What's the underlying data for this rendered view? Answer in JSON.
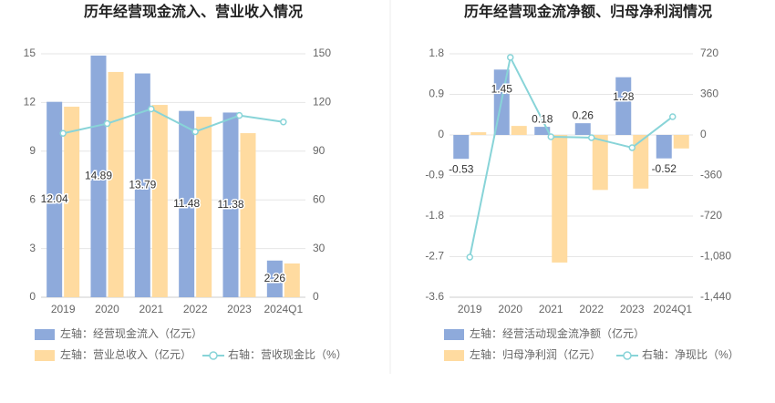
{
  "chart_data": [
    {
      "type": "combo",
      "title": "历年经营现金流入、营业收入情况",
      "categories": [
        "2019",
        "2020",
        "2021",
        "2022",
        "2023",
        "2024Q1"
      ],
      "ylim": [
        0,
        15
      ],
      "yticks": [
        0,
        3,
        6,
        9,
        12,
        15
      ],
      "y2lim": [
        0,
        150
      ],
      "y2ticks": [
        0,
        30,
        60,
        90,
        120,
        150
      ],
      "grid": true,
      "series": [
        {
          "name": "左轴：经营现金流入（亿元）",
          "kind": "bar",
          "color": "#8eaadb",
          "data_labels": true,
          "values": [
            12.04,
            14.89,
            13.79,
            11.48,
            11.38,
            2.26
          ]
        },
        {
          "name": "左轴：营业总收入（亿元）",
          "kind": "bar",
          "color": "#ffdba0",
          "values": [
            11.74,
            13.88,
            11.85,
            11.12,
            10.11,
            2.08
          ]
        },
        {
          "name": "右轴：营收现金比（%）",
          "kind": "line",
          "axis": "y2",
          "color": "#88d4d8",
          "values": [
            101,
            107,
            116,
            102,
            112,
            108
          ]
        }
      ]
    },
    {
      "type": "combo",
      "title": "历年经营现金流净额、归母净利润情况",
      "categories": [
        "2019",
        "2020",
        "2021",
        "2022",
        "2023",
        "2024Q1"
      ],
      "ylim": [
        -3.6,
        1.8
      ],
      "yticks": [
        -3.6,
        -2.7,
        -1.8,
        -0.9,
        0,
        0.9,
        1.8
      ],
      "y2lim": [
        -1440,
        720
      ],
      "y2ticks": [
        {
          "value": -1440,
          "label": "-1,440"
        },
        {
          "value": -1080,
          "label": "-1,080"
        },
        -720,
        -360,
        0,
        360,
        720
      ],
      "grid": true,
      "series": [
        {
          "name": "左轴：经营活动现金流净额（亿元）",
          "kind": "bar",
          "color": "#8eaadb",
          "data_labels": true,
          "values": [
            -0.53,
            1.45,
            0.18,
            0.26,
            1.28,
            -0.52
          ]
        },
        {
          "name": "左轴：归母净利润（亿元）",
          "kind": "bar",
          "color": "#ffdba0",
          "values": [
            0.06,
            0.2,
            -2.83,
            -1.22,
            -1.19,
            -0.3
          ]
        },
        {
          "name": "右轴：净现比（%）",
          "kind": "line",
          "axis": "y2",
          "color": "#88d4d8",
          "values": [
            -1084,
            688,
            -16,
            -24,
            -113,
            162
          ]
        }
      ]
    }
  ]
}
